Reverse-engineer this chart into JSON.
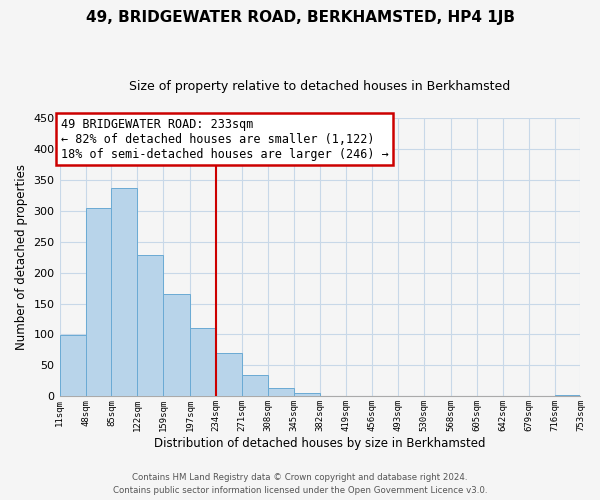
{
  "title": "49, BRIDGEWATER ROAD, BERKHAMSTED, HP4 1JB",
  "subtitle": "Size of property relative to detached houses in Berkhamsted",
  "xlabel": "Distribution of detached houses by size in Berkhamsted",
  "ylabel": "Number of detached properties",
  "bin_edges": [
    11,
    48,
    85,
    122,
    159,
    197,
    234,
    271,
    308,
    345,
    382,
    419,
    456,
    493,
    530,
    568,
    605,
    642,
    679,
    716,
    753
  ],
  "bar_heights": [
    99,
    305,
    337,
    228,
    165,
    110,
    70,
    35,
    13,
    5,
    0,
    0,
    0,
    0,
    0,
    0,
    0,
    0,
    0,
    2
  ],
  "bar_color": "#b8d4ea",
  "bar_edge_color": "#6aaad4",
  "reference_line_x": 234,
  "ylim": [
    0,
    450
  ],
  "yticks": [
    0,
    50,
    100,
    150,
    200,
    250,
    300,
    350,
    400,
    450
  ],
  "annotation_title": "49 BRIDGEWATER ROAD: 233sqm",
  "annotation_line1": "← 82% of detached houses are smaller (1,122)",
  "annotation_line2": "18% of semi-detached houses are larger (246) →",
  "annotation_box_color": "#ffffff",
  "annotation_box_edge": "#cc0000",
  "footer_line1": "Contains HM Land Registry data © Crown copyright and database right 2024.",
  "footer_line2": "Contains public sector information licensed under the Open Government Licence v3.0.",
  "background_color": "#f5f5f5",
  "grid_color": "#c8d8e8",
  "title_fontsize": 11,
  "subtitle_fontsize": 9
}
